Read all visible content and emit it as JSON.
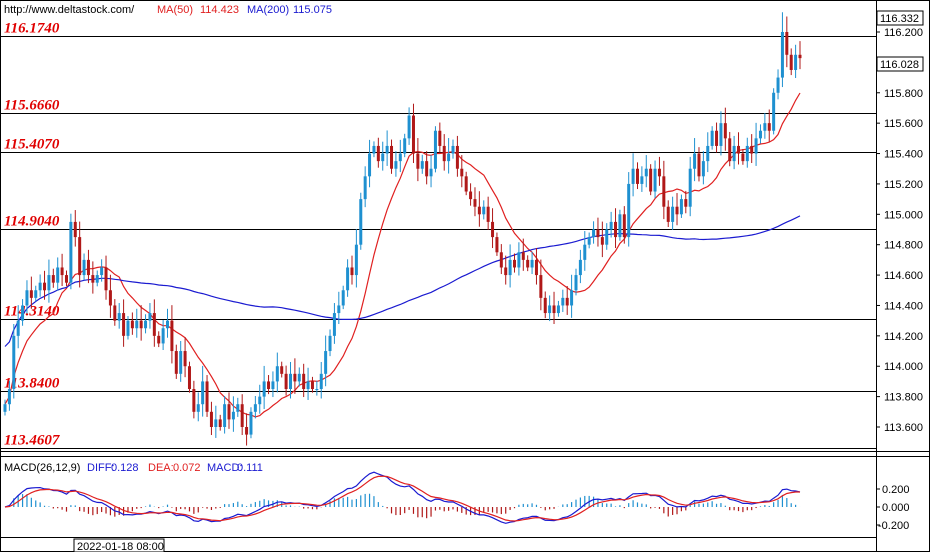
{
  "header": {
    "site": "http://www.deltastock.com/",
    "ma50_label": "MA(50)",
    "ma50_value": "114.423",
    "ma200_label": "MA(200)",
    "ma200_value": "115.075"
  },
  "macd_header": {
    "title": "MACD(26,12,9)",
    "diff_label": "DIFF:",
    "diff_value": "0.128",
    "dea_label": "DEA:",
    "dea_value": "0.072",
    "macd_label": "MACD:",
    "macd_value": "0.111"
  },
  "date_label": "2022-01-18 08:00",
  "price_tags": {
    "high": "116.332",
    "last": "116.028"
  },
  "colors": {
    "level_line": "#000000",
    "level_text": "#e00000",
    "ma50": "#e02020",
    "ma200": "#1a1ad0",
    "candle_up": "#1e90d0",
    "candle_down": "#b01818",
    "diff": "#1a1ad0",
    "dea": "#e02020"
  },
  "chart_data": {
    "type": "candlestick",
    "y_ticks": [
      "116.200",
      "116.000",
      "115.800",
      "115.600",
      "115.400",
      "115.200",
      "115.000",
      "114.800",
      "114.600",
      "114.400",
      "114.200",
      "114.000",
      "113.800",
      "113.600"
    ],
    "ylim": [
      113.46,
      116.36
    ],
    "levels": [
      {
        "label": "116.1740",
        "value": 116.174
      },
      {
        "label": "115.6660",
        "value": 115.666
      },
      {
        "label": "115.4070",
        "value": 115.407
      },
      {
        "label": "114.9040",
        "value": 114.904
      },
      {
        "label": "114.3140",
        "value": 114.314
      },
      {
        "label": "113.8400",
        "value": 113.84
      },
      {
        "label": "113.4607",
        "value": 113.4607
      }
    ],
    "close": [
      113.75,
      113.85,
      114.2,
      114.3,
      114.4,
      114.5,
      114.45,
      114.5,
      114.55,
      114.5,
      114.6,
      114.55,
      114.65,
      114.6,
      114.55,
      114.95,
      114.85,
      114.6,
      114.7,
      114.6,
      114.55,
      114.6,
      114.65,
      114.5,
      114.4,
      114.3,
      114.35,
      114.2,
      114.3,
      114.25,
      114.3,
      114.25,
      114.3,
      114.35,
      114.2,
      114.15,
      114.25,
      114.3,
      114.1,
      113.95,
      114.1,
      114.0,
      113.85,
      113.7,
      113.75,
      113.9,
      113.7,
      113.6,
      113.65,
      113.6,
      113.75,
      113.65,
      113.7,
      113.75,
      113.6,
      113.55,
      113.7,
      113.75,
      113.8,
      113.9,
      113.85,
      113.9,
      114.0,
      113.95,
      113.85,
      113.95,
      113.9,
      113.95,
      113.85,
      113.9,
      113.85,
      113.85,
      113.95,
      114.1,
      114.2,
      114.35,
      114.4,
      114.5,
      114.65,
      114.6,
      114.8,
      115.1,
      115.25,
      115.4,
      115.45,
      115.35,
      115.4,
      115.45,
      115.3,
      115.35,
      115.4,
      115.5,
      115.65,
      115.4,
      115.3,
      115.35,
      115.25,
      115.3,
      115.55,
      115.45,
      115.35,
      115.4,
      115.45,
      115.3,
      115.25,
      115.15,
      115.1,
      115.05,
      115.0,
      115.05,
      114.95,
      114.85,
      114.75,
      114.65,
      114.6,
      114.7,
      114.65,
      114.75,
      114.7,
      114.65,
      114.7,
      114.6,
      114.45,
      114.35,
      114.4,
      114.35,
      114.4,
      114.45,
      114.4,
      114.5,
      114.6,
      114.7,
      114.8,
      114.85,
      114.9,
      114.85,
      114.8,
      114.9,
      114.95,
      114.85,
      115.0,
      114.85,
      115.2,
      115.3,
      115.2,
      115.25,
      115.3,
      115.15,
      115.3,
      115.25,
      115.05,
      114.95,
      115.05,
      115.0,
      115.1,
      115.05,
      115.3,
      115.4,
      115.25,
      115.35,
      115.45,
      115.55,
      115.45,
      115.6,
      115.5,
      115.35,
      115.45,
      115.4,
      115.35,
      115.45,
      115.4,
      115.5,
      115.55,
      115.6,
      115.55,
      115.8,
      115.9,
      116.2,
      116.05,
      115.95,
      116.05,
      116.028
    ]
  }
}
